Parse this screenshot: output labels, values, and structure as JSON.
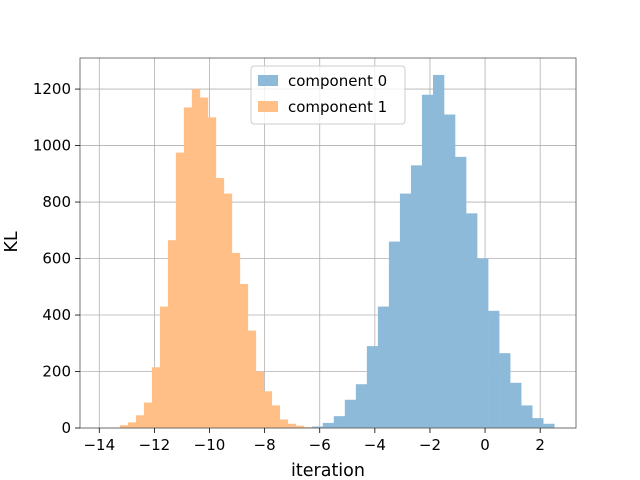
{
  "chart_data": {
    "type": "bar",
    "title": "",
    "xlabel": "iteration",
    "ylabel": "KL",
    "xlim": [
      -14.7,
      3.3
    ],
    "ylim": [
      0,
      1310
    ],
    "xticks": [
      -14,
      -12,
      -10,
      -8,
      -6,
      -4,
      -2,
      0,
      2
    ],
    "yticks": [
      0,
      200,
      400,
      600,
      800,
      1000,
      1200
    ],
    "grid": true,
    "legend_position": "top-center",
    "series": [
      {
        "name": "component 0",
        "color": "#8ebad9",
        "bin_edges": [
          -6.29,
          -5.89,
          -5.49,
          -5.09,
          -4.69,
          -4.29,
          -3.89,
          -3.49,
          -3.09,
          -2.69,
          -2.29,
          -1.89,
          -1.49,
          -1.09,
          -0.69,
          -0.29,
          0.11,
          0.51,
          0.91,
          1.31,
          1.71,
          2.11,
          2.51
        ],
        "counts": [
          5,
          18,
          42,
          100,
          155,
          290,
          430,
          660,
          830,
          930,
          1180,
          1250,
          1110,
          960,
          760,
          600,
          415,
          265,
          160,
          80,
          35,
          15
        ]
      },
      {
        "name": "component 1",
        "color": "#ffbf86",
        "bin_edges": [
          -13.25,
          -12.96,
          -12.67,
          -12.38,
          -12.09,
          -11.8,
          -11.51,
          -11.22,
          -10.93,
          -10.64,
          -10.35,
          -10.06,
          -9.77,
          -9.48,
          -9.19,
          -8.9,
          -8.61,
          -8.32,
          -8.03,
          -7.74,
          -7.45,
          -7.16,
          -6.87,
          -6.58,
          -6.29
        ],
        "counts": [
          10,
          20,
          45,
          90,
          215,
          430,
          665,
          975,
          1135,
          1200,
          1170,
          1100,
          885,
          830,
          620,
          510,
          345,
          200,
          130,
          80,
          30,
          15,
          8,
          3
        ]
      }
    ]
  }
}
